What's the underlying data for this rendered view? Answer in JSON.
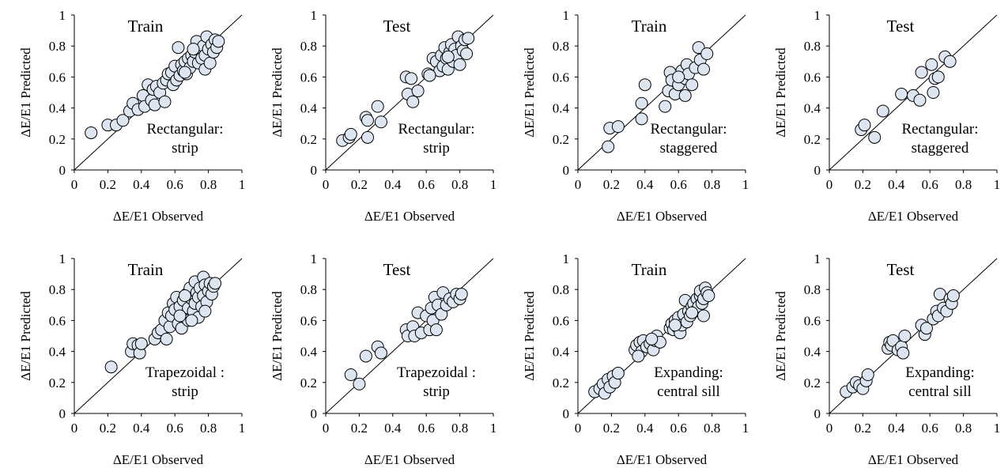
{
  "figure": {
    "point_fill": "#dde6f0",
    "point_stroke": "#000000"
  },
  "chart_data": [
    {
      "type": "scatter",
      "title": "Train",
      "annotation": [
        "Rectangular:",
        "strip"
      ],
      "xlabel": "ΔE/E1  Observed",
      "ylabel": "ΔE/E1  Predicted",
      "xlim": [
        0,
        1
      ],
      "ylim": [
        0,
        1
      ],
      "xticks": [
        "0",
        "0.2",
        "0.4",
        "0.6",
        "0.8",
        "1"
      ],
      "yticks": [
        "0",
        "0.2",
        "0.4",
        "0.6",
        "0.8",
        "1"
      ],
      "reference_line": "y = x",
      "grid": false,
      "points": [
        [
          0.1,
          0.24
        ],
        [
          0.2,
          0.29
        ],
        [
          0.25,
          0.29
        ],
        [
          0.29,
          0.32
        ],
        [
          0.33,
          0.38
        ],
        [
          0.35,
          0.43
        ],
        [
          0.38,
          0.39
        ],
        [
          0.41,
          0.48
        ],
        [
          0.42,
          0.41
        ],
        [
          0.44,
          0.55
        ],
        [
          0.46,
          0.45
        ],
        [
          0.47,
          0.52
        ],
        [
          0.48,
          0.42
        ],
        [
          0.49,
          0.54
        ],
        [
          0.51,
          0.5
        ],
        [
          0.53,
          0.56
        ],
        [
          0.54,
          0.44
        ],
        [
          0.55,
          0.58
        ],
        [
          0.56,
          0.62
        ],
        [
          0.58,
          0.63
        ],
        [
          0.59,
          0.55
        ],
        [
          0.6,
          0.67
        ],
        [
          0.61,
          0.58
        ],
        [
          0.62,
          0.79
        ],
        [
          0.63,
          0.61
        ],
        [
          0.64,
          0.68
        ],
        [
          0.65,
          0.64
        ],
        [
          0.66,
          0.7
        ],
        [
          0.67,
          0.62
        ],
        [
          0.68,
          0.72
        ],
        [
          0.69,
          0.66
        ],
        [
          0.7,
          0.74
        ],
        [
          0.71,
          0.7
        ],
        [
          0.72,
          0.76
        ],
        [
          0.73,
          0.83
        ],
        [
          0.74,
          0.69
        ],
        [
          0.75,
          0.77
        ],
        [
          0.76,
          0.72
        ],
        [
          0.77,
          0.8
        ],
        [
          0.78,
          0.65
        ],
        [
          0.78,
          0.74
        ],
        [
          0.79,
          0.86
        ],
        [
          0.8,
          0.78
        ],
        [
          0.81,
          0.69
        ],
        [
          0.82,
          0.81
        ],
        [
          0.83,
          0.76
        ],
        [
          0.84,
          0.84
        ],
        [
          0.85,
          0.79
        ],
        [
          0.86,
          0.83
        ],
        [
          0.71,
          0.78
        ],
        [
          0.66,
          0.63
        ]
      ]
    },
    {
      "type": "scatter",
      "title": "Test",
      "annotation": [
        "Rectangular:",
        "strip"
      ],
      "xlabel": "ΔE/E1  Observed",
      "ylabel": "ΔE/E1  Predicted",
      "xlim": [
        0,
        1
      ],
      "ylim": [
        0,
        1
      ],
      "xticks": [
        "0",
        "0.2",
        "0.4",
        "0.6",
        "0.8",
        "1"
      ],
      "yticks": [
        "0",
        "0.2",
        "0.4",
        "0.6",
        "0.8",
        "1"
      ],
      "reference_line": "y = x",
      "grid": false,
      "points": [
        [
          0.1,
          0.19
        ],
        [
          0.14,
          0.21
        ],
        [
          0.15,
          0.23
        ],
        [
          0.24,
          0.34
        ],
        [
          0.25,
          0.21
        ],
        [
          0.25,
          0.32
        ],
        [
          0.31,
          0.41
        ],
        [
          0.33,
          0.31
        ],
        [
          0.48,
          0.6
        ],
        [
          0.49,
          0.49
        ],
        [
          0.51,
          0.59
        ],
        [
          0.52,
          0.44
        ],
        [
          0.55,
          0.51
        ],
        [
          0.61,
          0.62
        ],
        [
          0.64,
          0.72
        ],
        [
          0.66,
          0.7
        ],
        [
          0.68,
          0.64
        ],
        [
          0.69,
          0.74
        ],
        [
          0.7,
          0.67
        ],
        [
          0.71,
          0.79
        ],
        [
          0.72,
          0.72
        ],
        [
          0.73,
          0.65
        ],
        [
          0.74,
          0.76
        ],
        [
          0.75,
          0.81
        ],
        [
          0.76,
          0.7
        ],
        [
          0.77,
          0.78
        ],
        [
          0.78,
          0.74
        ],
        [
          0.79,
          0.86
        ],
        [
          0.8,
          0.68
        ],
        [
          0.81,
          0.8
        ],
        [
          0.82,
          0.77
        ],
        [
          0.83,
          0.84
        ],
        [
          0.84,
          0.75
        ],
        [
          0.85,
          0.85
        ],
        [
          0.62,
          0.61
        ],
        [
          0.73,
          0.73
        ]
      ]
    },
    {
      "type": "scatter",
      "title": "Train",
      "annotation": [
        "Rectangular:",
        "staggered"
      ],
      "xlabel": "ΔE/E1  Observed",
      "ylabel": "ΔE/E1  Predicted",
      "xlim": [
        0,
        1
      ],
      "ylim": [
        0,
        1
      ],
      "xticks": [
        "0",
        "0.2",
        "0.4",
        "0.6",
        "0.8",
        "1"
      ],
      "yticks": [
        "0",
        "0.2",
        "0.4",
        "0.6",
        "0.8",
        "1"
      ],
      "reference_line": "y = x",
      "grid": false,
      "points": [
        [
          0.18,
          0.15
        ],
        [
          0.19,
          0.27
        ],
        [
          0.24,
          0.28
        ],
        [
          0.38,
          0.43
        ],
        [
          0.4,
          0.55
        ],
        [
          0.52,
          0.41
        ],
        [
          0.54,
          0.51
        ],
        [
          0.55,
          0.63
        ],
        [
          0.56,
          0.58
        ],
        [
          0.58,
          0.49
        ],
        [
          0.6,
          0.55
        ],
        [
          0.62,
          0.64
        ],
        [
          0.64,
          0.59
        ],
        [
          0.64,
          0.48
        ],
        [
          0.65,
          0.68
        ],
        [
          0.66,
          0.62
        ],
        [
          0.68,
          0.55
        ],
        [
          0.7,
          0.66
        ],
        [
          0.72,
          0.79
        ],
        [
          0.73,
          0.71
        ],
        [
          0.75,
          0.65
        ],
        [
          0.77,
          0.75
        ],
        [
          0.38,
          0.33
        ],
        [
          0.6,
          0.6
        ]
      ]
    },
    {
      "type": "scatter",
      "title": "Test",
      "annotation": [
        "Rectangular:",
        "staggered"
      ],
      "xlabel": "ΔE/E1  Observed",
      "ylabel": "ΔE/E1  Predicted",
      "xlim": [
        0,
        1
      ],
      "ylim": [
        0,
        1
      ],
      "xticks": [
        "0",
        "0.2",
        "0.4",
        "0.6",
        "0.8",
        "1"
      ],
      "yticks": [
        "0",
        "0.2",
        "0.4",
        "0.6",
        "0.8",
        "1"
      ],
      "reference_line": "y = x",
      "grid": false,
      "points": [
        [
          0.19,
          0.26
        ],
        [
          0.21,
          0.29
        ],
        [
          0.27,
          0.21
        ],
        [
          0.32,
          0.38
        ],
        [
          0.43,
          0.49
        ],
        [
          0.5,
          0.48
        ],
        [
          0.54,
          0.45
        ],
        [
          0.55,
          0.63
        ],
        [
          0.61,
          0.68
        ],
        [
          0.62,
          0.5
        ],
        [
          0.63,
          0.59
        ],
        [
          0.65,
          0.6
        ],
        [
          0.69,
          0.73
        ],
        [
          0.72,
          0.7
        ]
      ]
    },
    {
      "type": "scatter",
      "title": "Train",
      "annotation": [
        "Trapezoidal :",
        "strip"
      ],
      "xlabel": "ΔE/E1  Observed",
      "ylabel": "ΔE/E1  Predicted",
      "xlim": [
        0,
        1
      ],
      "ylim": [
        0,
        1
      ],
      "xticks": [
        "0",
        "0.2",
        "0.4",
        "0.6",
        "0.8",
        "1"
      ],
      "yticks": [
        "0",
        "0.2",
        "0.4",
        "0.6",
        "0.8",
        "1"
      ],
      "reference_line": "y = x",
      "grid": false,
      "points": [
        [
          0.22,
          0.3
        ],
        [
          0.34,
          0.4
        ],
        [
          0.35,
          0.45
        ],
        [
          0.38,
          0.44
        ],
        [
          0.39,
          0.39
        ],
        [
          0.4,
          0.45
        ],
        [
          0.48,
          0.48
        ],
        [
          0.5,
          0.52
        ],
        [
          0.52,
          0.54
        ],
        [
          0.54,
          0.6
        ],
        [
          0.55,
          0.48
        ],
        [
          0.56,
          0.65
        ],
        [
          0.57,
          0.56
        ],
        [
          0.58,
          0.63
        ],
        [
          0.59,
          0.71
        ],
        [
          0.6,
          0.67
        ],
        [
          0.61,
          0.75
        ],
        [
          0.62,
          0.58
        ],
        [
          0.63,
          0.69
        ],
        [
          0.64,
          0.55
        ],
        [
          0.65,
          0.73
        ],
        [
          0.66,
          0.62
        ],
        [
          0.67,
          0.77
        ],
        [
          0.68,
          0.6
        ],
        [
          0.68,
          0.68
        ],
        [
          0.69,
          0.81
        ],
        [
          0.7,
          0.74
        ],
        [
          0.71,
          0.66
        ],
        [
          0.72,
          0.85
        ],
        [
          0.72,
          0.71
        ],
        [
          0.73,
          0.78
        ],
        [
          0.74,
          0.62
        ],
        [
          0.74,
          0.75
        ],
        [
          0.75,
          0.81
        ],
        [
          0.76,
          0.69
        ],
        [
          0.77,
          0.88
        ],
        [
          0.77,
          0.76
        ],
        [
          0.78,
          0.83
        ],
        [
          0.79,
          0.72
        ],
        [
          0.8,
          0.79
        ],
        [
          0.81,
          0.84
        ],
        [
          0.82,
          0.77
        ],
        [
          0.83,
          0.82
        ],
        [
          0.84,
          0.84
        ],
        [
          0.63,
          0.63
        ],
        [
          0.7,
          0.6
        ],
        [
          0.78,
          0.66
        ],
        [
          0.66,
          0.76
        ]
      ]
    },
    {
      "type": "scatter",
      "title": "Test",
      "annotation": [
        "Trapezoidal :",
        "strip"
      ],
      "xlabel": "ΔE/E1  Observed",
      "ylabel": "ΔE/E1  Predicted",
      "xlim": [
        0,
        1
      ],
      "ylim": [
        0,
        1
      ],
      "xticks": [
        "0",
        "0.2",
        "0.4",
        "0.6",
        "0.8",
        "1"
      ],
      "yticks": [
        "0",
        "0.2",
        "0.4",
        "0.6",
        "0.8",
        "1"
      ],
      "reference_line": "y = x",
      "grid": false,
      "points": [
        [
          0.15,
          0.25
        ],
        [
          0.2,
          0.19
        ],
        [
          0.24,
          0.37
        ],
        [
          0.31,
          0.43
        ],
        [
          0.33,
          0.39
        ],
        [
          0.48,
          0.54
        ],
        [
          0.49,
          0.5
        ],
        [
          0.52,
          0.56
        ],
        [
          0.53,
          0.5
        ],
        [
          0.55,
          0.65
        ],
        [
          0.57,
          0.52
        ],
        [
          0.6,
          0.63
        ],
        [
          0.62,
          0.54
        ],
        [
          0.63,
          0.68
        ],
        [
          0.64,
          0.6
        ],
        [
          0.65,
          0.75
        ],
        [
          0.66,
          0.54
        ],
        [
          0.67,
          0.7
        ],
        [
          0.69,
          0.64
        ],
        [
          0.7,
          0.78
        ],
        [
          0.72,
          0.7
        ],
        [
          0.74,
          0.74
        ],
        [
          0.76,
          0.72
        ],
        [
          0.78,
          0.77
        ],
        [
          0.8,
          0.74
        ],
        [
          0.81,
          0.77
        ]
      ]
    },
    {
      "type": "scatter",
      "title": "Train",
      "annotation": [
        "Expanding:",
        "central sill"
      ],
      "xlabel": "ΔE/E1  Observed",
      "ylabel": "ΔE/E1  Predicted",
      "xlim": [
        0,
        1
      ],
      "ylim": [
        0,
        1
      ],
      "xticks": [
        "0",
        "0.2",
        "0.4",
        "0.6",
        "0.8",
        "1"
      ],
      "yticks": [
        "0",
        "0.2",
        "0.4",
        "0.6",
        "0.8",
        "1"
      ],
      "reference_line": "y = x",
      "grid": false,
      "points": [
        [
          0.1,
          0.14
        ],
        [
          0.13,
          0.16
        ],
        [
          0.15,
          0.19
        ],
        [
          0.16,
          0.13
        ],
        [
          0.18,
          0.22
        ],
        [
          0.19,
          0.17
        ],
        [
          0.21,
          0.24
        ],
        [
          0.22,
          0.2
        ],
        [
          0.24,
          0.26
        ],
        [
          0.34,
          0.41
        ],
        [
          0.35,
          0.44
        ],
        [
          0.37,
          0.46
        ],
        [
          0.38,
          0.4
        ],
        [
          0.39,
          0.47
        ],
        [
          0.41,
          0.43
        ],
        [
          0.43,
          0.45
        ],
        [
          0.45,
          0.41
        ],
        [
          0.46,
          0.47
        ],
        [
          0.47,
          0.5
        ],
        [
          0.49,
          0.46
        ],
        [
          0.55,
          0.55
        ],
        [
          0.56,
          0.58
        ],
        [
          0.57,
          0.54
        ],
        [
          0.58,
          0.6
        ],
        [
          0.59,
          0.56
        ],
        [
          0.6,
          0.62
        ],
        [
          0.61,
          0.52
        ],
        [
          0.62,
          0.57
        ],
        [
          0.63,
          0.64
        ],
        [
          0.64,
          0.73
        ],
        [
          0.65,
          0.59
        ],
        [
          0.66,
          0.66
        ],
        [
          0.67,
          0.63
        ],
        [
          0.68,
          0.69
        ],
        [
          0.69,
          0.71
        ],
        [
          0.7,
          0.66
        ],
        [
          0.71,
          0.74
        ],
        [
          0.72,
          0.69
        ],
        [
          0.73,
          0.76
        ],
        [
          0.73,
          0.79
        ],
        [
          0.74,
          0.71
        ],
        [
          0.75,
          0.74
        ],
        [
          0.75,
          0.63
        ],
        [
          0.76,
          0.81
        ],
        [
          0.77,
          0.78
        ],
        [
          0.78,
          0.76
        ],
        [
          0.58,
          0.57
        ],
        [
          0.68,
          0.65
        ],
        [
          0.36,
          0.37
        ],
        [
          0.44,
          0.48
        ]
      ]
    },
    {
      "type": "scatter",
      "title": "Test",
      "annotation": [
        "Expanding:",
        "central sill"
      ],
      "xlabel": "ΔE/E1  Observed",
      "ylabel": "ΔE/E1  Predicted",
      "xlim": [
        0,
        1
      ],
      "ylim": [
        0,
        1
      ],
      "xticks": [
        "0",
        "0.2",
        "0.4",
        "0.6",
        "0.8",
        "1"
      ],
      "yticks": [
        "0",
        "0.2",
        "0.4",
        "0.6",
        "0.8",
        "1"
      ],
      "reference_line": "y = x",
      "grid": false,
      "points": [
        [
          0.1,
          0.14
        ],
        [
          0.14,
          0.17
        ],
        [
          0.16,
          0.2
        ],
        [
          0.18,
          0.18
        ],
        [
          0.2,
          0.16
        ],
        [
          0.22,
          0.21
        ],
        [
          0.23,
          0.25
        ],
        [
          0.35,
          0.42
        ],
        [
          0.36,
          0.46
        ],
        [
          0.37,
          0.44
        ],
        [
          0.38,
          0.47
        ],
        [
          0.41,
          0.41
        ],
        [
          0.43,
          0.43
        ],
        [
          0.44,
          0.39
        ],
        [
          0.45,
          0.5
        ],
        [
          0.55,
          0.57
        ],
        [
          0.57,
          0.51
        ],
        [
          0.58,
          0.55
        ],
        [
          0.62,
          0.61
        ],
        [
          0.64,
          0.66
        ],
        [
          0.65,
          0.63
        ],
        [
          0.66,
          0.77
        ],
        [
          0.68,
          0.68
        ],
        [
          0.7,
          0.66
        ],
        [
          0.72,
          0.74
        ],
        [
          0.73,
          0.71
        ],
        [
          0.74,
          0.76
        ]
      ]
    }
  ]
}
